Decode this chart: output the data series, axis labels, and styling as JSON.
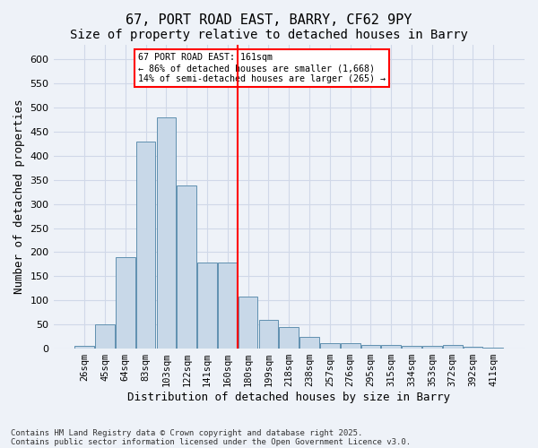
{
  "title1": "67, PORT ROAD EAST, BARRY, CF62 9PY",
  "title2": "Size of property relative to detached houses in Barry",
  "xlabel": "Distribution of detached houses by size in Barry",
  "ylabel": "Number of detached properties",
  "bin_labels": [
    "26sqm",
    "45sqm",
    "64sqm",
    "83sqm",
    "103sqm",
    "122sqm",
    "141sqm",
    "160sqm",
    "180sqm",
    "199sqm",
    "218sqm",
    "238sqm",
    "257sqm",
    "276sqm",
    "295sqm",
    "315sqm",
    "334sqm",
    "353sqm",
    "372sqm",
    "392sqm",
    "411sqm"
  ],
  "bar_heights": [
    5,
    50,
    190,
    430,
    480,
    338,
    178,
    178,
    108,
    60,
    44,
    24,
    11,
    11,
    8,
    8,
    5,
    5,
    7,
    3,
    2
  ],
  "bar_color": "#c8d8e8",
  "bar_edge_color": "#6090b0",
  "grid_color": "#d0d8e8",
  "background_color": "#eef2f8",
  "vline_x": 7,
  "vline_color": "red",
  "annotation_text": "67 PORT ROAD EAST: 161sqm\n← 86% of detached houses are smaller (1,668)\n14% of semi-detached houses are larger (265) →",
  "annotation_box_color": "white",
  "annotation_box_edge": "red",
  "ylim": [
    0,
    630
  ],
  "yticks": [
    0,
    50,
    100,
    150,
    200,
    250,
    300,
    350,
    400,
    450,
    500,
    550,
    600
  ],
  "footer1": "Contains HM Land Registry data © Crown copyright and database right 2025.",
  "footer2": "Contains public sector information licensed under the Open Government Licence v3.0.",
  "title_fontsize": 11,
  "subtitle_fontsize": 10,
  "tick_fontsize": 7.5,
  "label_fontsize": 9
}
